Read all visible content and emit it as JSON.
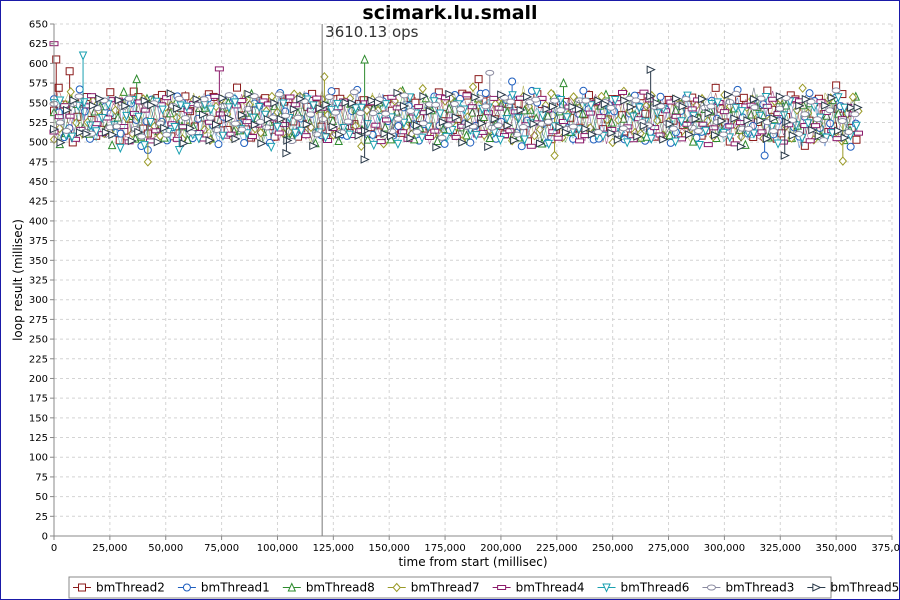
{
  "chart_data": {
    "type": "scatter",
    "title": "scimark.lu.small",
    "xlabel": "time from start (millisec)",
    "ylabel": "loop result (millisec)",
    "xlim": [
      0,
      375000
    ],
    "ylim": [
      0,
      650
    ],
    "x_ticks": [
      0,
      25000,
      50000,
      75000,
      100000,
      125000,
      150000,
      175000,
      200000,
      225000,
      250000,
      275000,
      300000,
      325000,
      350000,
      375000
    ],
    "x_tick_labels": [
      "0",
      "25,000",
      "50,000",
      "75,000",
      "100,000",
      "125,000",
      "150,000",
      "175,000",
      "200,000",
      "225,000",
      "250,000",
      "275,000",
      "300,000",
      "325,000",
      "350,000",
      "375,000"
    ],
    "y_ticks": [
      0,
      25,
      50,
      75,
      100,
      125,
      150,
      175,
      200,
      225,
      250,
      275,
      300,
      325,
      350,
      375,
      400,
      425,
      450,
      475,
      500,
      525,
      550,
      575,
      600,
      625,
      650
    ],
    "grid": true,
    "legend_position": "bottom",
    "marker_line": {
      "x": 120000,
      "label": "3610.13 ops"
    },
    "colors": {
      "bmThread2": "#8b1a1a",
      "bmThread1": "#1f5fbf",
      "bmThread8": "#2e8b2e",
      "bmThread7": "#9a9a28",
      "bmThread4": "#8b1a6a",
      "bmThread6": "#1aa0b0",
      "bmThread3": "#8a8aa0",
      "bmThread5": "#2a3a4a"
    },
    "series": [
      {
        "name": "bmThread2",
        "marker": "square",
        "x_start": 0,
        "x_end": 360000,
        "step": 2100,
        "base": 533,
        "amp": 32,
        "phase": 0.3,
        "outliers": [
          [
            1000,
            605
          ],
          [
            7000,
            590
          ],
          [
            190000,
            580
          ],
          [
            350000,
            572
          ]
        ]
      },
      {
        "name": "bmThread1",
        "marker": "circle",
        "x_start": 0,
        "x_end": 360000,
        "step": 2300,
        "base": 531,
        "amp": 33,
        "phase": 1.7,
        "outliers": [
          [
            42000,
            490
          ],
          [
            318000,
            483
          ],
          [
            205000,
            577
          ]
        ]
      },
      {
        "name": "bmThread8",
        "marker": "triangle-up",
        "x_start": 0,
        "x_end": 360000,
        "step": 2600,
        "base": 529,
        "amp": 30,
        "phase": 2.9,
        "outliers": [
          [
            139000,
            605
          ],
          [
            37000,
            580
          ],
          [
            228000,
            575
          ]
        ]
      },
      {
        "name": "bmThread7",
        "marker": "diamond",
        "x_start": 0,
        "x_end": 360000,
        "step": 2500,
        "base": 532,
        "amp": 34,
        "phase": 4.1,
        "outliers": [
          [
            42000,
            475
          ],
          [
            353000,
            476
          ],
          [
            121000,
            583
          ],
          [
            224000,
            483
          ]
        ]
      },
      {
        "name": "bmThread4",
        "marker": "rect-wide",
        "x_start": 0,
        "x_end": 360000,
        "step": 2400,
        "base": 530,
        "amp": 31,
        "phase": 5.3,
        "outliers": [
          [
            74000,
            593
          ],
          [
            0,
            625
          ]
        ]
      },
      {
        "name": "bmThread6",
        "marker": "triangle-down",
        "x_start": 0,
        "x_end": 360000,
        "step": 2700,
        "base": 528,
        "amp": 32,
        "phase": 0.9,
        "outliers": [
          [
            13000,
            610
          ],
          [
            56000,
            490
          ]
        ]
      },
      {
        "name": "bmThread3",
        "marker": "ellipse",
        "x_start": 0,
        "x_end": 360000,
        "step": 2800,
        "base": 534,
        "amp": 30,
        "phase": 2.2,
        "outliers": [
          [
            195000,
            588
          ]
        ]
      },
      {
        "name": "bmThread5",
        "marker": "triangle-right",
        "x_start": 0,
        "x_end": 360000,
        "step": 2900,
        "base": 530,
        "amp": 33,
        "phase": 3.6,
        "outliers": [
          [
            139000,
            478
          ],
          [
            267000,
            592
          ],
          [
            327000,
            483
          ],
          [
            104000,
            486
          ]
        ]
      }
    ]
  }
}
